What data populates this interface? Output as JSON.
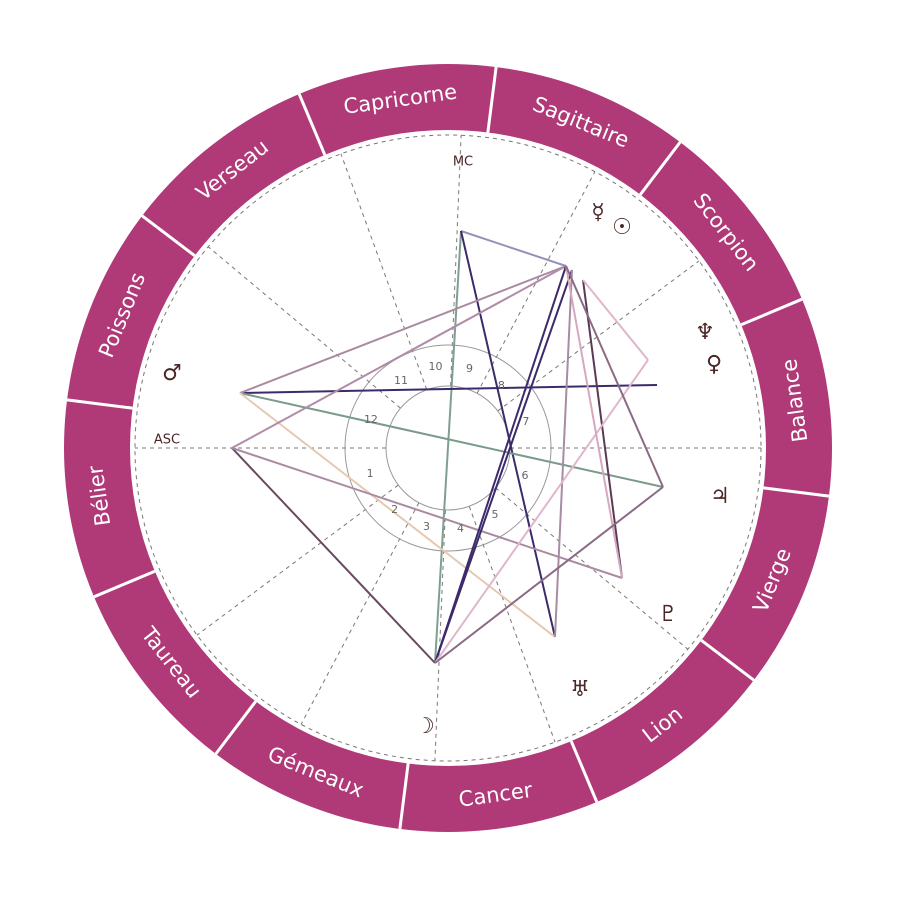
{
  "signs": [
    "Bélier",
    "Taureau",
    "Gémeaux",
    "Cancer",
    "Lion",
    "Vierge",
    "Balance",
    "Scorpion",
    "Sagittaire",
    "Capricorne",
    "Verseau",
    "Poissons"
  ],
  "houses": [
    "1",
    "2",
    "3",
    "4",
    "5",
    "6",
    "7",
    "8",
    "9",
    "10",
    "11",
    "12"
  ],
  "angles": {
    "asc": "ASC",
    "mc": "MC"
  },
  "planets": [
    {
      "glyph": "☿"
    },
    {
      "glyph": "☉"
    },
    {
      "glyph": "♆"
    },
    {
      "glyph": "♀"
    },
    {
      "glyph": "♃"
    },
    {
      "glyph": "♇"
    },
    {
      "glyph": "♅"
    },
    {
      "glyph": "☽"
    },
    {
      "glyph": "♂"
    }
  ]
}
